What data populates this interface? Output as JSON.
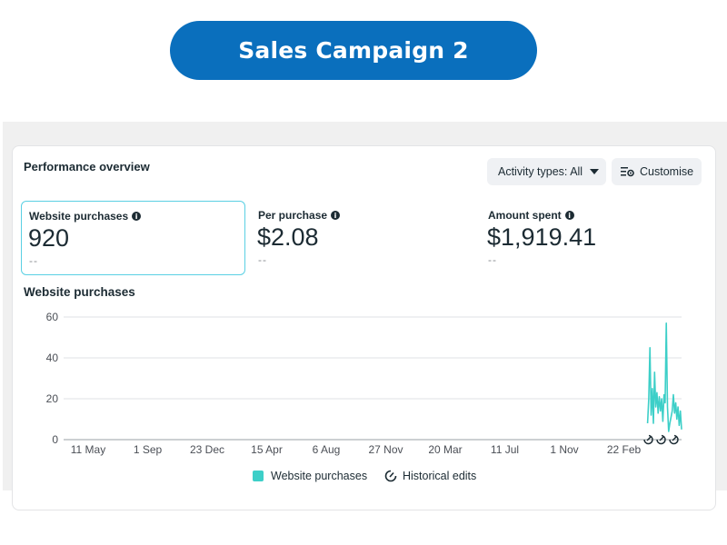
{
  "banner": {
    "title": "Sales Campaign 2"
  },
  "panel": {
    "title": "Performance overview",
    "activity_button": "Activity types: All",
    "customise_button": "Customise"
  },
  "metrics": [
    {
      "label": "Website purchases",
      "value": "920",
      "delta": "--"
    },
    {
      "label": "Per purchase",
      "value": "$2.08",
      "delta": "--"
    },
    {
      "label": "Amount spent",
      "value": "$1,919.41",
      "delta": "--"
    }
  ],
  "chart_section_title": "Website purchases",
  "chart_data": {
    "type": "line",
    "title": "Website purchases",
    "xlabel": "",
    "ylabel": "",
    "ylim": [
      0,
      60
    ],
    "y_ticks": [
      0,
      20,
      40,
      60
    ],
    "x_tick_labels": [
      "11 May",
      "1 Sep",
      "23 Dec",
      "15 Apr",
      "6 Aug",
      "27 Nov",
      "20 Mar",
      "11 Jul",
      "1 Nov",
      "22 Feb"
    ],
    "grid": true,
    "series": [
      {
        "name": "Website purchases",
        "color": "#3dcfc8",
        "values": [
          8,
          20,
          45,
          12,
          25,
          8,
          33,
          16,
          23,
          13,
          21,
          14,
          20,
          9,
          22,
          18,
          57,
          16,
          4,
          8,
          11,
          14,
          22,
          13,
          18,
          10,
          16,
          7,
          14,
          5
        ]
      }
    ],
    "series_start_fraction": 0.945,
    "series_end_fraction": 1.0,
    "historical_edit_markers": 3
  },
  "legend": {
    "series_label": "Website purchases",
    "edits_label": "Historical edits"
  }
}
